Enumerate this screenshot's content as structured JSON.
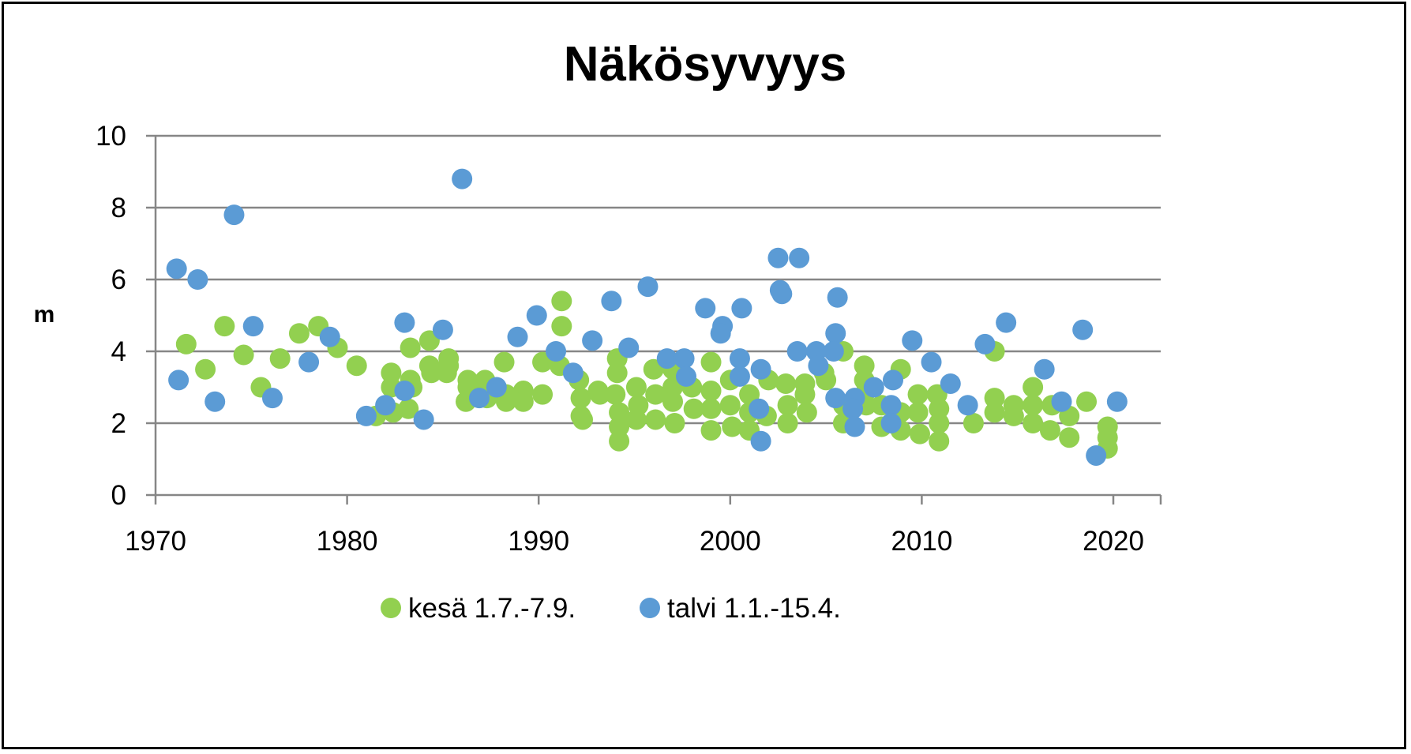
{
  "chart_data": {
    "type": "scatter",
    "title": "Näkösyvyys",
    "xlabel": "",
    "ylabel": "m",
    "xlim": [
      1970,
      2022.5
    ],
    "ylim": [
      0,
      10
    ],
    "xticks": [
      "1970",
      "1980",
      "1990",
      "2000",
      "2010",
      "2020"
    ],
    "yticks": [
      "0",
      "2",
      "4",
      "6",
      "8",
      "10"
    ],
    "grid": "horizontal",
    "legend_position": "bottom",
    "series": [
      {
        "name": "kesä 1.7.-7.9.",
        "color": "#92d050",
        "points": [
          [
            1971.6,
            4.2
          ],
          [
            1972.6,
            3.5
          ],
          [
            1973.6,
            4.7
          ],
          [
            1974.6,
            3.9
          ],
          [
            1975.5,
            3.0
          ],
          [
            1976.5,
            3.8
          ],
          [
            1977.5,
            4.5
          ],
          [
            1978.5,
            4.7
          ],
          [
            1979.5,
            4.1
          ],
          [
            1980.5,
            3.6
          ],
          [
            1981.5,
            2.2
          ],
          [
            1982.3,
            3.4
          ],
          [
            1982.3,
            3.0
          ],
          [
            1982.4,
            2.3
          ],
          [
            1983.3,
            4.1
          ],
          [
            1983.3,
            3.2
          ],
          [
            1983.4,
            3.0
          ],
          [
            1983.2,
            2.4
          ],
          [
            1984.3,
            4.3
          ],
          [
            1984.3,
            3.6
          ],
          [
            1984.4,
            3.4
          ],
          [
            1985.3,
            3.8
          ],
          [
            1985.3,
            3.6
          ],
          [
            1985.2,
            3.4
          ],
          [
            1986.3,
            3.2
          ],
          [
            1986.3,
            3.0
          ],
          [
            1986.2,
            2.6
          ],
          [
            1987.2,
            3.2
          ],
          [
            1987.3,
            2.9
          ],
          [
            1987.3,
            2.7
          ],
          [
            1988.2,
            3.7
          ],
          [
            1988.3,
            2.8
          ],
          [
            1988.3,
            2.6
          ],
          [
            1989.2,
            2.9
          ],
          [
            1989.2,
            2.6
          ],
          [
            1990.2,
            2.8
          ],
          [
            1990.2,
            3.7
          ],
          [
            1991.2,
            5.4
          ],
          [
            1991.2,
            4.7
          ],
          [
            1991.1,
            3.6
          ],
          [
            1992.1,
            3.2
          ],
          [
            1992.2,
            2.7
          ],
          [
            1992.2,
            2.2
          ],
          [
            1992.3,
            2.1
          ],
          [
            1993.1,
            2.9
          ],
          [
            1993.2,
            2.8
          ],
          [
            1994.1,
            3.8
          ],
          [
            1994.1,
            3.4
          ],
          [
            1994.0,
            2.8
          ],
          [
            1994.2,
            2.3
          ],
          [
            1994.2,
            1.9
          ],
          [
            1994.2,
            1.5
          ],
          [
            1995.1,
            3.0
          ],
          [
            1995.2,
            2.5
          ],
          [
            1995.1,
            2.1
          ],
          [
            1996.0,
            3.5
          ],
          [
            1996.1,
            2.8
          ],
          [
            1996.1,
            2.1
          ],
          [
            1997.0,
            3.5
          ],
          [
            1997.0,
            3.0
          ],
          [
            1997.0,
            2.6
          ],
          [
            1997.1,
            2.0
          ],
          [
            1998.0,
            3.0
          ],
          [
            1998.1,
            2.4
          ],
          [
            1999.0,
            3.7
          ],
          [
            1999.0,
            2.9
          ],
          [
            1999.0,
            2.4
          ],
          [
            1999.0,
            1.8
          ],
          [
            2000.0,
            3.2
          ],
          [
            2000.0,
            2.5
          ],
          [
            2000.1,
            1.9
          ],
          [
            2001.0,
            2.8
          ],
          [
            2001.0,
            2.3
          ],
          [
            2001.0,
            1.8
          ],
          [
            2002.0,
            3.2
          ],
          [
            2001.9,
            2.2
          ],
          [
            2002.9,
            3.1
          ],
          [
            2003.0,
            2.5
          ],
          [
            2003.0,
            2.0
          ],
          [
            2003.9,
            3.1
          ],
          [
            2003.9,
            2.8
          ],
          [
            2004.0,
            2.3
          ],
          [
            2004.9,
            3.4
          ],
          [
            2005.0,
            3.2
          ],
          [
            2005.9,
            4.0
          ],
          [
            2005.9,
            2.5
          ],
          [
            2005.9,
            2.0
          ],
          [
            2007.0,
            3.6
          ],
          [
            2007.0,
            3.2
          ],
          [
            2007.0,
            2.8
          ],
          [
            2007.1,
            2.5
          ],
          [
            2007.9,
            2.5
          ],
          [
            2007.9,
            1.9
          ],
          [
            2008.9,
            3.5
          ],
          [
            2008.9,
            2.3
          ],
          [
            2008.9,
            1.8
          ],
          [
            2009.8,
            2.8
          ],
          [
            2009.8,
            2.3
          ],
          [
            2009.9,
            1.7
          ],
          [
            2010.8,
            2.8
          ],
          [
            2010.9,
            2.4
          ],
          [
            2010.9,
            2.0
          ],
          [
            2010.9,
            1.5
          ],
          [
            2012.7,
            2.0
          ],
          [
            2013.8,
            4.0
          ],
          [
            2013.8,
            2.7
          ],
          [
            2013.8,
            2.3
          ],
          [
            2014.8,
            2.5
          ],
          [
            2014.8,
            2.2
          ],
          [
            2015.8,
            3.0
          ],
          [
            2015.8,
            2.5
          ],
          [
            2015.8,
            2.0
          ],
          [
            2016.8,
            2.5
          ],
          [
            2016.7,
            1.8
          ],
          [
            2017.7,
            2.2
          ],
          [
            2017.7,
            1.6
          ],
          [
            2018.6,
            2.6
          ],
          [
            2019.7,
            1.9
          ],
          [
            2019.7,
            1.6
          ],
          [
            2019.7,
            1.3
          ]
        ]
      },
      {
        "name": "talvi 1.1.-15.4.",
        "color": "#5b9bd5",
        "points": [
          [
            1971.1,
            6.3
          ],
          [
            1971.2,
            3.2
          ],
          [
            1972.2,
            6.0
          ],
          [
            1973.1,
            2.6
          ],
          [
            1974.1,
            7.8
          ],
          [
            1975.1,
            4.7
          ],
          [
            1976.1,
            2.7
          ],
          [
            1978.0,
            3.7
          ],
          [
            1979.1,
            4.4
          ],
          [
            1981.0,
            2.2
          ],
          [
            1982.0,
            2.5
          ],
          [
            1983.0,
            4.8
          ],
          [
            1983.0,
            2.9
          ],
          [
            1984.0,
            2.1
          ],
          [
            1985.0,
            4.6
          ],
          [
            1986.0,
            8.8
          ],
          [
            1986.9,
            2.7
          ],
          [
            1987.8,
            3.0
          ],
          [
            1988.9,
            4.4
          ],
          [
            1989.9,
            5.0
          ],
          [
            1990.9,
            4.0
          ],
          [
            1991.8,
            3.4
          ],
          [
            1992.8,
            4.3
          ],
          [
            1993.8,
            5.4
          ],
          [
            1994.7,
            4.1
          ],
          [
            1995.7,
            5.8
          ],
          [
            1996.7,
            3.8
          ],
          [
            1997.6,
            3.8
          ],
          [
            1997.7,
            3.3
          ],
          [
            1998.7,
            5.2
          ],
          [
            1999.6,
            4.7
          ],
          [
            1999.5,
            4.5
          ],
          [
            2000.6,
            5.2
          ],
          [
            2000.5,
            3.8
          ],
          [
            2000.5,
            3.3
          ],
          [
            2001.6,
            3.5
          ],
          [
            2001.5,
            2.4
          ],
          [
            2001.6,
            1.5
          ],
          [
            2002.5,
            6.6
          ],
          [
            2002.6,
            5.7
          ],
          [
            2002.7,
            5.6
          ],
          [
            2003.6,
            6.6
          ],
          [
            2003.5,
            4.0
          ],
          [
            2004.5,
            4.0
          ],
          [
            2004.6,
            3.6
          ],
          [
            2005.6,
            5.5
          ],
          [
            2005.5,
            4.5
          ],
          [
            2005.4,
            4.0
          ],
          [
            2005.5,
            2.7
          ],
          [
            2006.5,
            2.7
          ],
          [
            2006.4,
            2.4
          ],
          [
            2006.5,
            1.9
          ],
          [
            2007.5,
            3.0
          ],
          [
            2008.5,
            3.2
          ],
          [
            2008.4,
            2.5
          ],
          [
            2008.4,
            2.0
          ],
          [
            2009.5,
            4.3
          ],
          [
            2010.5,
            3.7
          ],
          [
            2011.5,
            3.1
          ],
          [
            2012.4,
            2.5
          ],
          [
            2013.3,
            4.2
          ],
          [
            2014.4,
            4.8
          ],
          [
            2016.4,
            3.5
          ],
          [
            2017.3,
            2.6
          ],
          [
            2018.4,
            4.6
          ],
          [
            2019.1,
            1.1
          ],
          [
            2020.2,
            2.6
          ]
        ]
      }
    ]
  }
}
